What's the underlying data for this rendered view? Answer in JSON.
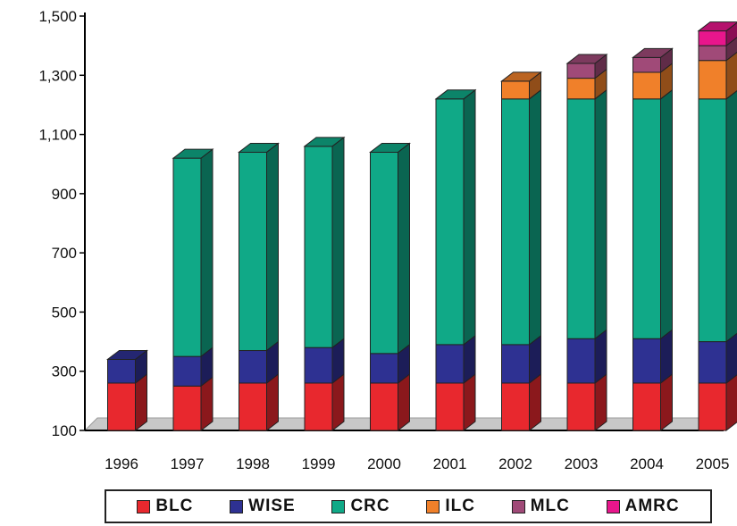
{
  "chart_data": {
    "type": "bar",
    "stacked": true,
    "title": "",
    "xlabel": "",
    "ylabel": "",
    "ylim": [
      100,
      1500
    ],
    "yticks": [
      "100",
      "300",
      "500",
      "700",
      "900",
      "1,100",
      "1,300",
      "1,500"
    ],
    "categories": [
      "1996",
      "1997",
      "1998",
      "1999",
      "2000",
      "2001",
      "2002",
      "2003",
      "2004",
      "2005"
    ],
    "series": [
      {
        "name": "BLC",
        "color": "#e8282e",
        "values": [
          160,
          150,
          160,
          160,
          160,
          160,
          160,
          160,
          160,
          160
        ]
      },
      {
        "name": "WISE",
        "color": "#2e3192",
        "values": [
          80,
          100,
          110,
          120,
          100,
          130,
          130,
          150,
          150,
          140
        ]
      },
      {
        "name": "CRC",
        "color": "#10a987",
        "values": [
          0,
          670,
          670,
          680,
          680,
          830,
          830,
          810,
          810,
          820
        ]
      },
      {
        "name": "ILC",
        "color": "#f0802a",
        "values": [
          0,
          0,
          0,
          0,
          0,
          0,
          60,
          70,
          90,
          130
        ]
      },
      {
        "name": "MLC",
        "color": "#a04a78",
        "values": [
          0,
          0,
          0,
          0,
          0,
          0,
          0,
          50,
          50,
          50
        ]
      },
      {
        "name": "AMRC",
        "color": "#e8168c",
        "values": [
          0,
          0,
          0,
          0,
          0,
          0,
          0,
          0,
          0,
          50
        ]
      }
    ],
    "grid": false,
    "legend_position": "bottom",
    "style": "3d"
  }
}
